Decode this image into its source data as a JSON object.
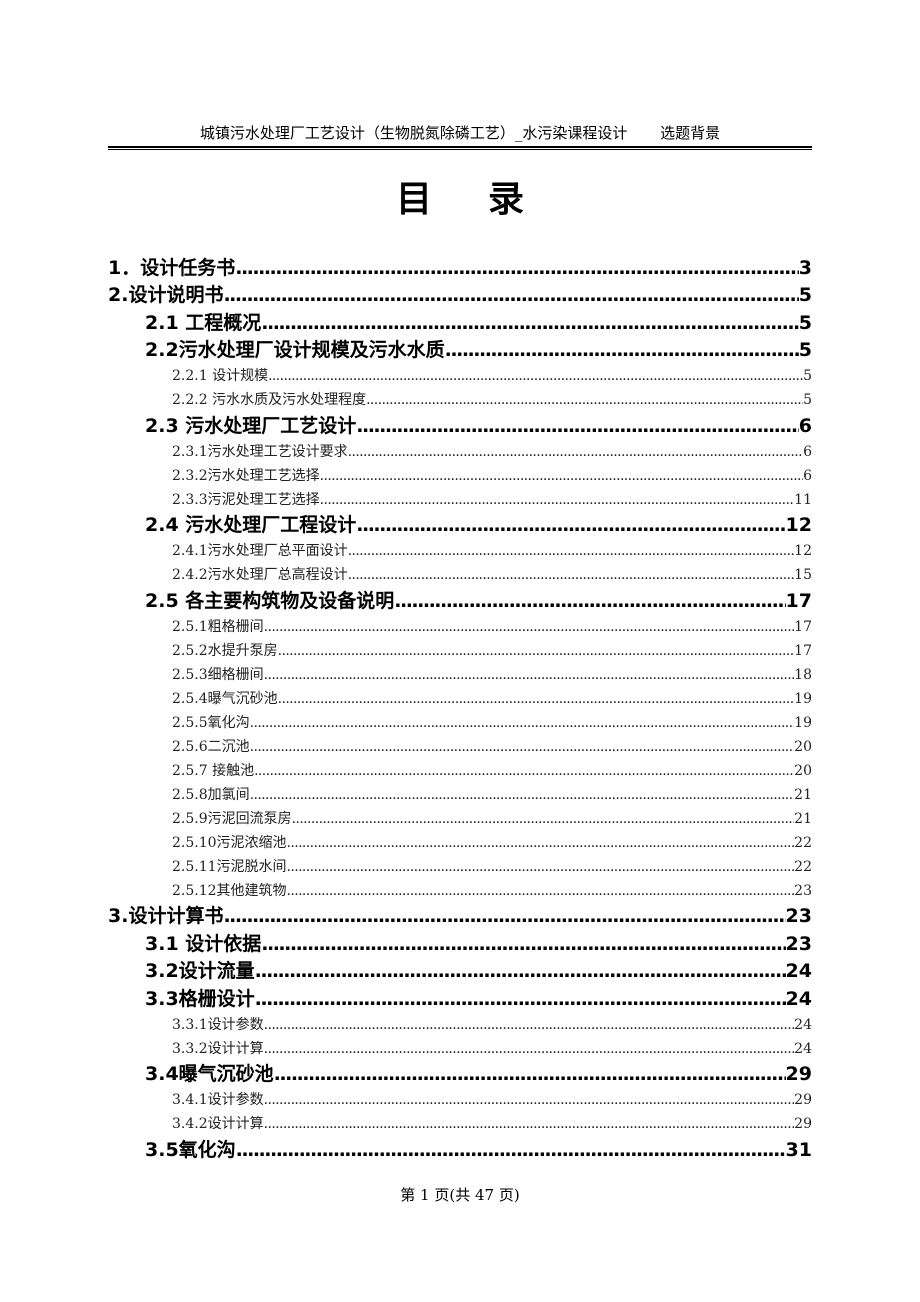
{
  "header": {
    "title": "城镇污水处理厂工艺设计（生物脱氮除磷工艺）_水污染课程设计",
    "section": "选题背景"
  },
  "title": [
    "目",
    "录"
  ],
  "toc": [
    {
      "level": 1,
      "label": "1．设计任务书",
      "page": "3"
    },
    {
      "level": 1,
      "label": "2.设计说明书",
      "page": "5"
    },
    {
      "level": 2,
      "label": "2.1 工程概况",
      "page": "5"
    },
    {
      "level": 2,
      "label": "2.2污水处理厂设计规模及污水水质",
      "page": "5"
    },
    {
      "level": 3,
      "label": "2.2.1 设计规模",
      "page": "5"
    },
    {
      "level": 3,
      "label": "2.2.2 污水水质及污水处理程度",
      "page": "5"
    },
    {
      "level": 2,
      "label": "2.3 污水处理厂工艺设计",
      "page": "6"
    },
    {
      "level": 3,
      "label": "2.3.1污水处理工艺设计要求",
      "page": "6"
    },
    {
      "level": 3,
      "label": "2.3.2污水处理工艺选择",
      "page": "6"
    },
    {
      "level": 3,
      "label": "2.3.3污泥处理工艺选择",
      "page": "11"
    },
    {
      "level": 2,
      "label": "2.4 污水处理厂工程设计",
      "page": "12"
    },
    {
      "level": 3,
      "label": "2.4.1污水处理厂总平面设计",
      "page": "12"
    },
    {
      "level": 3,
      "label": "2.4.2污水处理厂总高程设计",
      "page": "15"
    },
    {
      "level": 2,
      "label": "2.5 各主要构筑物及设备说明",
      "page": "17"
    },
    {
      "level": 3,
      "label": "2.5.1粗格栅间",
      "page": "17"
    },
    {
      "level": 3,
      "label": "2.5.2水提升泵房",
      "page": "17"
    },
    {
      "level": 3,
      "label": "2.5.3细格栅间",
      "page": "18"
    },
    {
      "level": 3,
      "label": "2.5.4曝气沉砂池",
      "page": "19"
    },
    {
      "level": 3,
      "label": "2.5.5氧化沟",
      "page": "19"
    },
    {
      "level": 3,
      "label": "2.5.6二沉池",
      "page": "20"
    },
    {
      "level": 3,
      "label": "2.5.7 接触池",
      "page": "20"
    },
    {
      "level": 3,
      "label": "2.5.8加氯间",
      "page": "21"
    },
    {
      "level": 3,
      "label": "2.5.9污泥回流泵房",
      "page": "21"
    },
    {
      "level": 3,
      "label": "2.5.10污泥浓缩池",
      "page": "22"
    },
    {
      "level": 3,
      "label": "2.5.11污泥脱水间",
      "page": "22"
    },
    {
      "level": 3,
      "label": "2.5.12其他建筑物",
      "page": "23"
    },
    {
      "level": 1,
      "label": "3.设计计算书",
      "page": "23"
    },
    {
      "level": 2,
      "label": "3.1 设计依据",
      "page": "23"
    },
    {
      "level": 2,
      "label": "3.2设计流量",
      "page": "24"
    },
    {
      "level": 2,
      "label": "3.3格栅设计",
      "page": "24"
    },
    {
      "level": 3,
      "label": "3.3.1设计参数",
      "page": "24"
    },
    {
      "level": 3,
      "label": "3.3.2设计计算",
      "page": "24"
    },
    {
      "level": 2,
      "label": "3.4曝气沉砂池",
      "page": "29"
    },
    {
      "level": 3,
      "label": "3.4.1设计参数",
      "page": "29"
    },
    {
      "level": 3,
      "label": "3.4.2设计计算",
      "page": "29"
    },
    {
      "level": 2,
      "label": "3.5氧化沟",
      "page": "31"
    }
  ],
  "footer": "第 1 页(共 47 页)"
}
